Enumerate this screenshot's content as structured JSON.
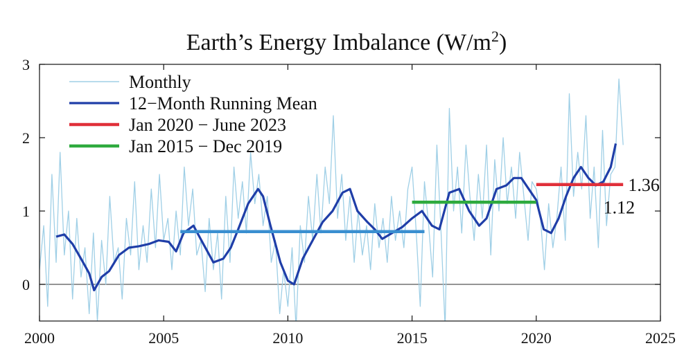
{
  "chart_data": {
    "type": "line",
    "title": "Earth’s Energy Imbalance (W/m",
    "title_sup": "2",
    "title_close": ")",
    "xlabel": "",
    "ylabel": "",
    "xlim": [
      2000,
      2025
    ],
    "ylim": [
      -0.5,
      3
    ],
    "xticks": [
      2000,
      2005,
      2010,
      2015,
      2020,
      2025
    ],
    "yticks": [
      0,
      1,
      2,
      3
    ],
    "grid": false,
    "legend_position": "top-left",
    "zero_line": true,
    "series": [
      {
        "name": "Monthly",
        "color": "#9fcfe6",
        "style": "thin-line",
        "x": [
          2000.0,
          2000.17,
          2000.33,
          2000.5,
          2000.67,
          2000.83,
          2001.0,
          2001.17,
          2001.33,
          2001.5,
          2001.67,
          2001.83,
          2002.0,
          2002.17,
          2002.33,
          2002.5,
          2002.67,
          2002.83,
          2003.0,
          2003.17,
          2003.33,
          2003.5,
          2003.67,
          2003.83,
          2004.0,
          2004.17,
          2004.33,
          2004.5,
          2004.67,
          2004.83,
          2005.0,
          2005.17,
          2005.33,
          2005.5,
          2005.67,
          2005.83,
          2006.0,
          2006.17,
          2006.33,
          2006.5,
          2006.67,
          2006.83,
          2007.0,
          2007.17,
          2007.33,
          2007.5,
          2007.67,
          2007.83,
          2008.0,
          2008.17,
          2008.33,
          2008.5,
          2008.67,
          2008.83,
          2009.0,
          2009.17,
          2009.33,
          2009.5,
          2009.67,
          2009.83,
          2010.0,
          2010.17,
          2010.33,
          2010.5,
          2010.67,
          2010.83,
          2011.0,
          2011.17,
          2011.33,
          2011.5,
          2011.67,
          2011.83,
          2012.0,
          2012.17,
          2012.33,
          2012.5,
          2012.67,
          2012.83,
          2013.0,
          2013.17,
          2013.33,
          2013.5,
          2013.67,
          2013.83,
          2014.0,
          2014.17,
          2014.33,
          2014.5,
          2014.67,
          2014.83,
          2015.0,
          2015.17,
          2015.33,
          2015.5,
          2015.67,
          2015.83,
          2016.0,
          2016.17,
          2016.33,
          2016.5,
          2016.67,
          2016.83,
          2017.0,
          2017.17,
          2017.33,
          2017.5,
          2017.67,
          2017.83,
          2018.0,
          2018.17,
          2018.33,
          2018.5,
          2018.67,
          2018.83,
          2019.0,
          2019.17,
          2019.33,
          2019.5,
          2019.67,
          2019.83,
          2020.0,
          2020.17,
          2020.33,
          2020.5,
          2020.67,
          2020.83,
          2021.0,
          2021.17,
          2021.33,
          2021.5,
          2021.67,
          2021.83,
          2022.0,
          2022.17,
          2022.33,
          2022.5,
          2022.67,
          2022.83,
          2023.0,
          2023.17,
          2023.33,
          2023.5
        ],
        "values": [
          0.2,
          0.8,
          -0.3,
          1.5,
          0.3,
          1.8,
          0.4,
          1.0,
          -0.2,
          0.9,
          0.1,
          0.5,
          -0.4,
          0.7,
          -0.5,
          0.6,
          0.0,
          1.2,
          0.3,
          0.5,
          -0.2,
          0.9,
          0.4,
          1.4,
          0.2,
          0.8,
          0.3,
          1.3,
          0.5,
          1.5,
          0.6,
          0.9,
          0.2,
          1.0,
          0.4,
          1.6,
          0.8,
          1.3,
          0.4,
          0.6,
          -0.1,
          0.9,
          0.2,
          0.7,
          -0.2,
          1.2,
          0.3,
          1.6,
          0.9,
          1.4,
          0.7,
          1.8,
          1.1,
          1.5,
          0.8,
          1.2,
          0.3,
          0.6,
          -0.4,
          0.2,
          -0.3,
          0.5,
          -0.6,
          0.8,
          0.3,
          1.2,
          0.6,
          1.5,
          0.7,
          1.6,
          1.1,
          2.3,
          0.9,
          1.5,
          0.6,
          1.2,
          0.3,
          1.0,
          0.4,
          0.8,
          0.2,
          1.1,
          0.5,
          0.9,
          0.3,
          1.2,
          0.6,
          1.0,
          0.5,
          1.3,
          1.6,
          0.7,
          -0.3,
          1.4,
          0.8,
          0.1,
          1.9,
          0.7,
          -0.6,
          2.4,
          1.0,
          1.6,
          0.7,
          1.9,
          1.2,
          0.6,
          1.5,
          0.9,
          1.9,
          0.4,
          1.7,
          1.0,
          2.0,
          1.1,
          1.6,
          0.9,
          1.8,
          1.2,
          0.6,
          1.4,
          1.3,
          0.9,
          0.2,
          1.1,
          0.5,
          0.9,
          1.6,
          0.6,
          2.6,
          1.2,
          1.8,
          1.3,
          2.3,
          0.9,
          1.6,
          0.5,
          2.1,
          0.8,
          1.5,
          1.6,
          2.8,
          1.9
        ]
      },
      {
        "name": "12−Month Running Mean",
        "color": "#1f3ea8",
        "style": "thick-line",
        "x": [
          2000.67,
          2001.0,
          2001.33,
          2001.67,
          2002.0,
          2002.2,
          2002.5,
          2002.8,
          2003.2,
          2003.6,
          2004.0,
          2004.4,
          2004.8,
          2005.2,
          2005.5,
          2005.8,
          2006.2,
          2006.6,
          2007.0,
          2007.4,
          2007.7,
          2008.0,
          2008.4,
          2008.8,
          2009.0,
          2009.3,
          2009.7,
          2010.0,
          2010.25,
          2010.6,
          2011.0,
          2011.4,
          2011.8,
          2012.2,
          2012.5,
          2012.8,
          2013.2,
          2013.5,
          2013.8,
          2014.2,
          2014.6,
          2015.0,
          2015.4,
          2015.8,
          2016.1,
          2016.5,
          2016.9,
          2017.3,
          2017.7,
          2018.0,
          2018.4,
          2018.8,
          2019.1,
          2019.4,
          2019.7,
          2020.0,
          2020.3,
          2020.6,
          2020.9,
          2021.2,
          2021.5,
          2021.8,
          2022.1,
          2022.4,
          2022.7,
          2023.0,
          2023.2
        ],
        "values": [
          0.65,
          0.68,
          0.55,
          0.35,
          0.15,
          -0.08,
          0.1,
          0.18,
          0.4,
          0.5,
          0.52,
          0.55,
          0.6,
          0.58,
          0.45,
          0.7,
          0.8,
          0.55,
          0.3,
          0.35,
          0.5,
          0.75,
          1.1,
          1.3,
          1.2,
          0.8,
          0.3,
          0.05,
          0.0,
          0.35,
          0.6,
          0.85,
          1.0,
          1.25,
          1.3,
          1.0,
          0.85,
          0.75,
          0.62,
          0.7,
          0.78,
          0.9,
          1.0,
          0.8,
          0.75,
          1.25,
          1.3,
          1.0,
          0.8,
          0.9,
          1.3,
          1.35,
          1.45,
          1.45,
          1.3,
          1.15,
          0.75,
          0.7,
          0.9,
          1.2,
          1.45,
          1.6,
          1.45,
          1.35,
          1.4,
          1.6,
          1.92
        ]
      },
      {
        "name": "Jan 2020 − June 2023",
        "color": "#e0303a",
        "style": "segment",
        "x": [
          2020.0,
          2023.5
        ],
        "values": [
          1.36,
          1.36
        ]
      },
      {
        "name": "Jan 2015 − Dec 2019",
        "color": "#2eaa3e",
        "style": "segment",
        "x": [
          2015.0,
          2020.0
        ],
        "values": [
          1.12,
          1.12
        ]
      },
      {
        "color": "#3a8fd0",
        "style": "segment",
        "x": [
          2005.67,
          2015.5
        ],
        "values": [
          0.72,
          0.72
        ]
      }
    ],
    "annotations": [
      {
        "text": "1.36",
        "x": 2023.7,
        "y": 1.36
      },
      {
        "text": "1.12",
        "x": 2022.7,
        "y": 1.05
      }
    ]
  }
}
